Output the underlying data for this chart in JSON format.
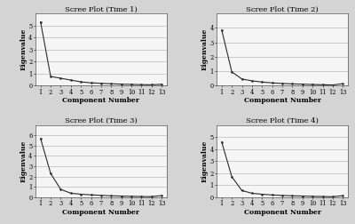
{
  "plots": [
    {
      "title": "Scree Plot (Time 1)",
      "eigenvalues": [
        5.3,
        0.75,
        0.6,
        0.45,
        0.3,
        0.22,
        0.18,
        0.14,
        0.11,
        0.09,
        0.07,
        0.06,
        0.1
      ],
      "ylim": [
        0,
        6
      ],
      "yticks": [
        0,
        1,
        2,
        3,
        4,
        5
      ]
    },
    {
      "title": "Scree Plot (Time 2)",
      "eigenvalues": [
        3.85,
        0.95,
        0.45,
        0.32,
        0.24,
        0.18,
        0.14,
        0.11,
        0.09,
        0.07,
        0.05,
        0.04,
        0.12
      ],
      "ylim": [
        0,
        5
      ],
      "yticks": [
        0,
        1,
        2,
        3,
        4
      ]
    },
    {
      "title": "Scree Plot (Time 3)",
      "eigenvalues": [
        5.7,
        2.3,
        0.75,
        0.38,
        0.28,
        0.22,
        0.17,
        0.13,
        0.1,
        0.08,
        0.06,
        0.05,
        0.15
      ],
      "ylim": [
        0,
        7
      ],
      "yticks": [
        0,
        1,
        2,
        3,
        4,
        5,
        6
      ]
    },
    {
      "title": "Scree Plot (Time 4)",
      "eigenvalues": [
        4.6,
        1.7,
        0.55,
        0.32,
        0.24,
        0.18,
        0.14,
        0.11,
        0.09,
        0.07,
        0.05,
        0.04,
        0.12
      ],
      "ylim": [
        0,
        6
      ],
      "yticks": [
        0,
        1,
        2,
        3,
        4,
        5
      ]
    }
  ],
  "xlabel": "Component Number",
  "ylabel": "Eigenvalue",
  "n_components": 13,
  "x_tick_labels": [
    "1",
    "2",
    "3",
    "4",
    "5",
    "6",
    "7",
    "8",
    "9",
    "10",
    "11",
    "12",
    "13"
  ],
  "line_color": "#2a2a2a",
  "marker": "o",
  "marker_size": 1.5,
  "bg_color": "#d4d4d4",
  "plot_bg_color": "#f5f5f5",
  "title_fontsize": 6.0,
  "label_fontsize": 5.5,
  "tick_fontsize": 4.8
}
